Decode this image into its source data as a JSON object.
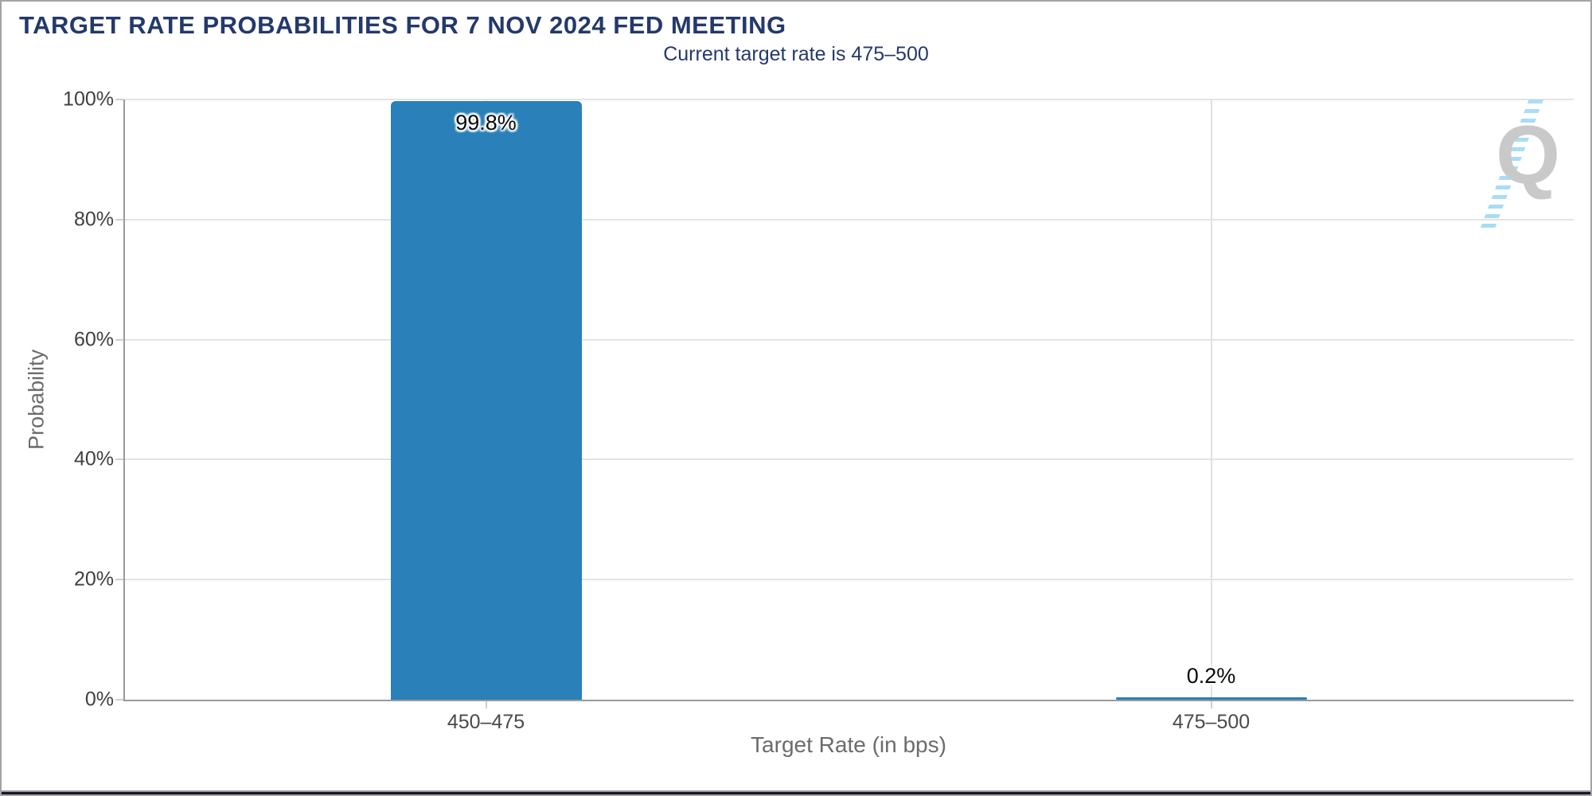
{
  "header": {
    "title": "TARGET RATE PROBABILITIES FOR 7 NOV 2024 FED MEETING",
    "subtitle": "Current target rate is 475–500"
  },
  "chart_data": {
    "type": "bar",
    "title": "TARGET RATE PROBABILITIES FOR 7 NOV 2024 FED MEETING",
    "subtitle": "Current target rate is 475–500",
    "categories": [
      "450–475",
      "475–500"
    ],
    "values": [
      99.8,
      0.2
    ],
    "value_labels": [
      "99.8%",
      "0.2%"
    ],
    "xlabel": "Target Rate (in bps)",
    "ylabel": "Probability",
    "ylim": [
      0,
      100
    ],
    "yticks": [
      0,
      20,
      40,
      60,
      80,
      100
    ],
    "ytick_labels": [
      "0%",
      "20%",
      "40%",
      "60%",
      "80%",
      "100%"
    ],
    "grid": true,
    "legend_position": "none",
    "bar_color": "#2A80B9"
  },
  "logo": {
    "letter": "Q"
  },
  "colors": {
    "title_navy": "#24396B",
    "bar_blue": "#2A80B9",
    "axis_gray": "#9a9a9a",
    "grid_gray": "#e4e4e4",
    "text_gray": "#6b6b6b",
    "footer_dark": "#15152e",
    "logo_stripe_blue": "#a8ddf3",
    "logo_q_gray": "#c9c9c9"
  }
}
